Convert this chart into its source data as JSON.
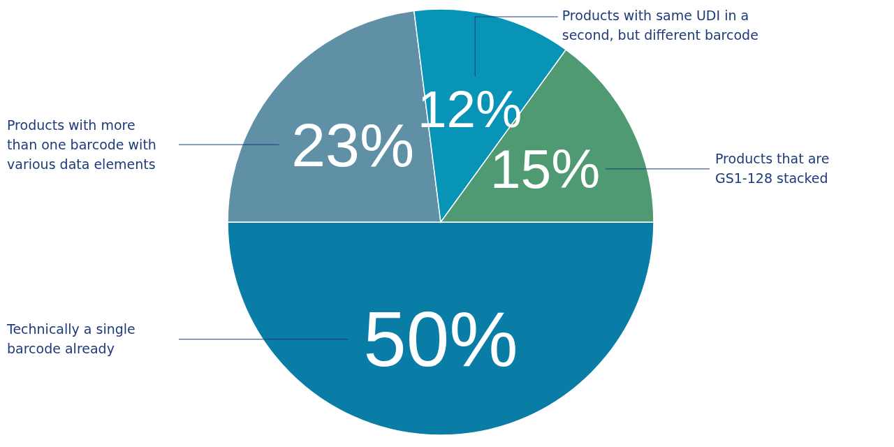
{
  "chart_data": {
    "type": "pie",
    "categories": [
      "Technically a single barcode already",
      "Products with more than one barcode with various data elements",
      "Products with same UDI in a second, but different barcode",
      "Products that are GS1-128 stacked"
    ],
    "values": [
      50,
      23,
      12,
      15
    ],
    "colors": [
      "#0a7da6",
      "#5f90a6",
      "#0894b6",
      "#4f9a72"
    ],
    "value_labels": [
      "50%",
      "23%",
      "12%",
      "15%"
    ]
  }
}
